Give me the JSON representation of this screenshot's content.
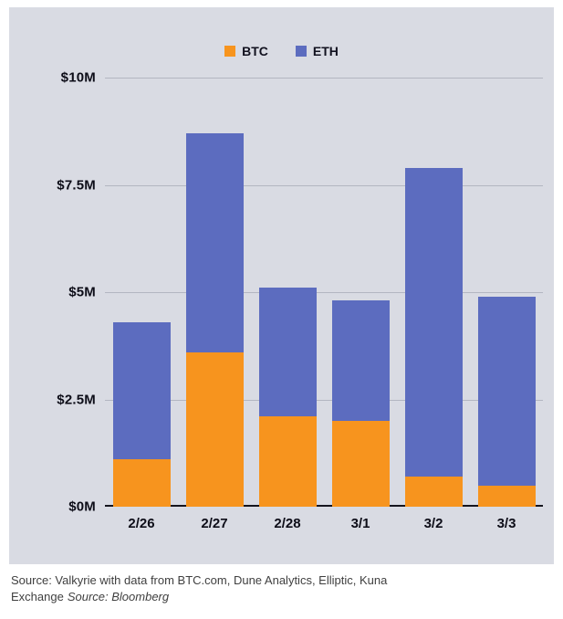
{
  "panel": {
    "background": "#d9dbe3"
  },
  "chart_data": {
    "type": "bar",
    "stacked": true,
    "categories": [
      "2/26",
      "2/27",
      "2/28",
      "3/1",
      "3/2",
      "3/3"
    ],
    "series": [
      {
        "name": "BTC",
        "color": "#f7941e",
        "values": [
          1.1,
          3.6,
          2.1,
          2.0,
          0.7,
          0.5
        ]
      },
      {
        "name": "ETH",
        "color": "#5c6cbf",
        "values": [
          3.2,
          5.1,
          3.0,
          2.8,
          7.2,
          4.4
        ]
      }
    ],
    "title": "",
    "xlabel": "",
    "ylabel": "",
    "ylim": [
      0,
      10
    ],
    "unit": "M USD",
    "grid": true,
    "legend_position": "top",
    "y_ticks": [
      {
        "value": 0,
        "label": "$0M"
      },
      {
        "value": 2.5,
        "label": "$2.5M"
      },
      {
        "value": 5,
        "label": "$5M"
      },
      {
        "value": 7.5,
        "label": "$7.5M"
      },
      {
        "value": 10,
        "label": "$10M"
      }
    ]
  },
  "footer": {
    "line1": "Source: Valkyrie with data from BTC.com, Dune Analytics, Elliptic, Kuna",
    "line2_text": "Exchange",
    "line2_italic": "Source: Bloomberg"
  }
}
